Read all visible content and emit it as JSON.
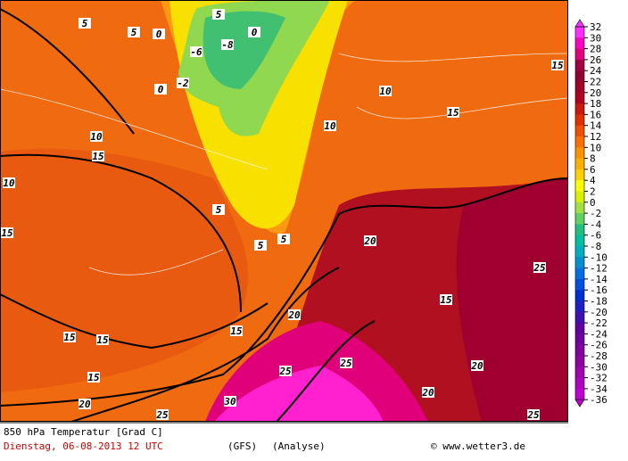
{
  "title": "850 hPa Temperatur [Grad C]",
  "date": "Dienstag, 06-08-2013  12 UTC",
  "model": "(GFS)",
  "run": "(Analyse)",
  "credit": "© www.wetter3.de",
  "scale": {
    "labels": [
      32,
      30,
      28,
      26,
      24,
      22,
      20,
      18,
      16,
      14,
      12,
      10,
      8,
      6,
      4,
      2,
      0,
      -2,
      -4,
      -6,
      -8,
      -10,
      -12,
      -14,
      -16,
      -18,
      -20,
      -22,
      -24,
      -26,
      -28,
      -30,
      -32,
      -34,
      -36
    ],
    "colors": [
      "#ff30ff",
      "#ff00c0",
      "#e00080",
      "#a00040",
      "#900030",
      "#a00028",
      "#b00020",
      "#c81810",
      "#e03000",
      "#f05000",
      "#ff7000",
      "#ff9000",
      "#ffb000",
      "#ffd000",
      "#ffff00",
      "#d8f000",
      "#a0e040",
      "#60d060",
      "#20c080",
      "#00c0a0",
      "#00b0c0",
      "#0090d0",
      "#0070e0",
      "#0050e0",
      "#0030d0",
      "#2020c0",
      "#4010b0",
      "#6000a0",
      "#7000a0",
      "#8000a0",
      "#9000a0",
      "#a000b0",
      "#b000c0",
      "#c000d0"
    ]
  },
  "contour_labels": [
    "5",
    "5",
    "5",
    "0",
    "0",
    "-2",
    "-6",
    "-8",
    "10",
    "15",
    "15",
    "15",
    "10",
    "5",
    "5",
    "15",
    "15",
    "15",
    "20",
    "20",
    "20",
    "25",
    "25",
    "25",
    "25",
    "30",
    "15",
    "10",
    "20",
    "25",
    "15",
    "5",
    "0",
    "10",
    "15",
    "20"
  ]
}
